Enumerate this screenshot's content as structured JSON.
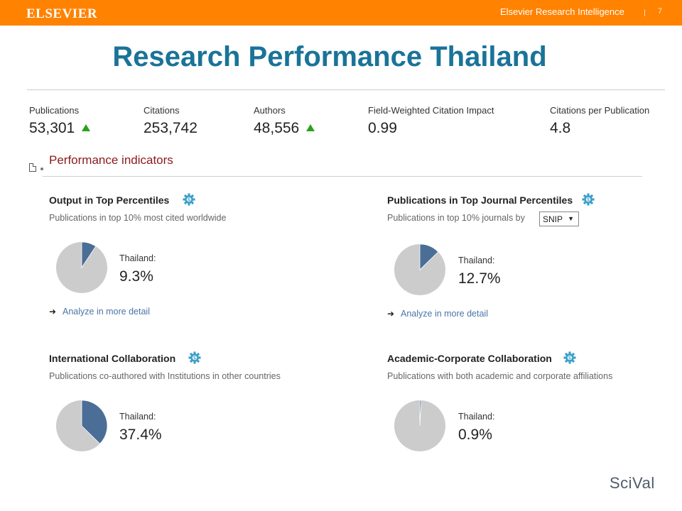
{
  "header": {
    "logo": "ELSEVIER",
    "brand": "Elsevier Research Intelligence",
    "page_number": "7"
  },
  "page_title": "Research Performance Thailand",
  "metrics": [
    {
      "label": "Publications",
      "value": "53,301",
      "trend": "up"
    },
    {
      "label": "Citations",
      "value": "253,742",
      "trend": ""
    },
    {
      "label": "Authors",
      "value": "48,556",
      "trend": "up"
    },
    {
      "label": "Field-Weighted Citation Impact",
      "value": "0.99",
      "trend": ""
    },
    {
      "label": "Citations per Publication",
      "value": "4.8",
      "trend": ""
    }
  ],
  "section_title": "Performance indicators",
  "panels": [
    {
      "title": "Output in Top Percentiles",
      "subtitle": "Publications in top 10% most cited worldwide",
      "country_label": "Thailand:",
      "value": "9.3%",
      "fraction": 0.093,
      "link": "Analyze in more detail"
    },
    {
      "title": "Publications in Top Journal Percentiles",
      "subtitle": "Publications in top 10% journals by",
      "select_value": "SNIP",
      "country_label": "Thailand:",
      "value": "12.7%",
      "fraction": 0.127,
      "link": "Analyze in more detail"
    },
    {
      "title": "International Collaboration",
      "subtitle": "Publications co-authored with Institutions in other countries",
      "country_label": "Thailand:",
      "value": "37.4%",
      "fraction": 0.374
    },
    {
      "title": "Academic-Corporate Collaboration",
      "subtitle": "Publications with both academic and corporate affiliations",
      "country_label": "Thailand:",
      "value": "0.9%",
      "fraction": 0.009
    }
  ],
  "colors": {
    "header_bar": "#ff8200",
    "title": "#1a7398",
    "section_title": "#8b1a1a",
    "pie_highlight": "#4a6e96",
    "pie_rest": "#cccccc",
    "trend_up": "#2aa21b",
    "link": "#4a74a8",
    "gear": "#3a9fc9"
  },
  "icons": {
    "gear": "gear-icon",
    "arrow": "arrow-right-icon",
    "trend": "trend-up-icon",
    "document": "document-icon"
  },
  "footer": {
    "brand": "SciVal"
  }
}
